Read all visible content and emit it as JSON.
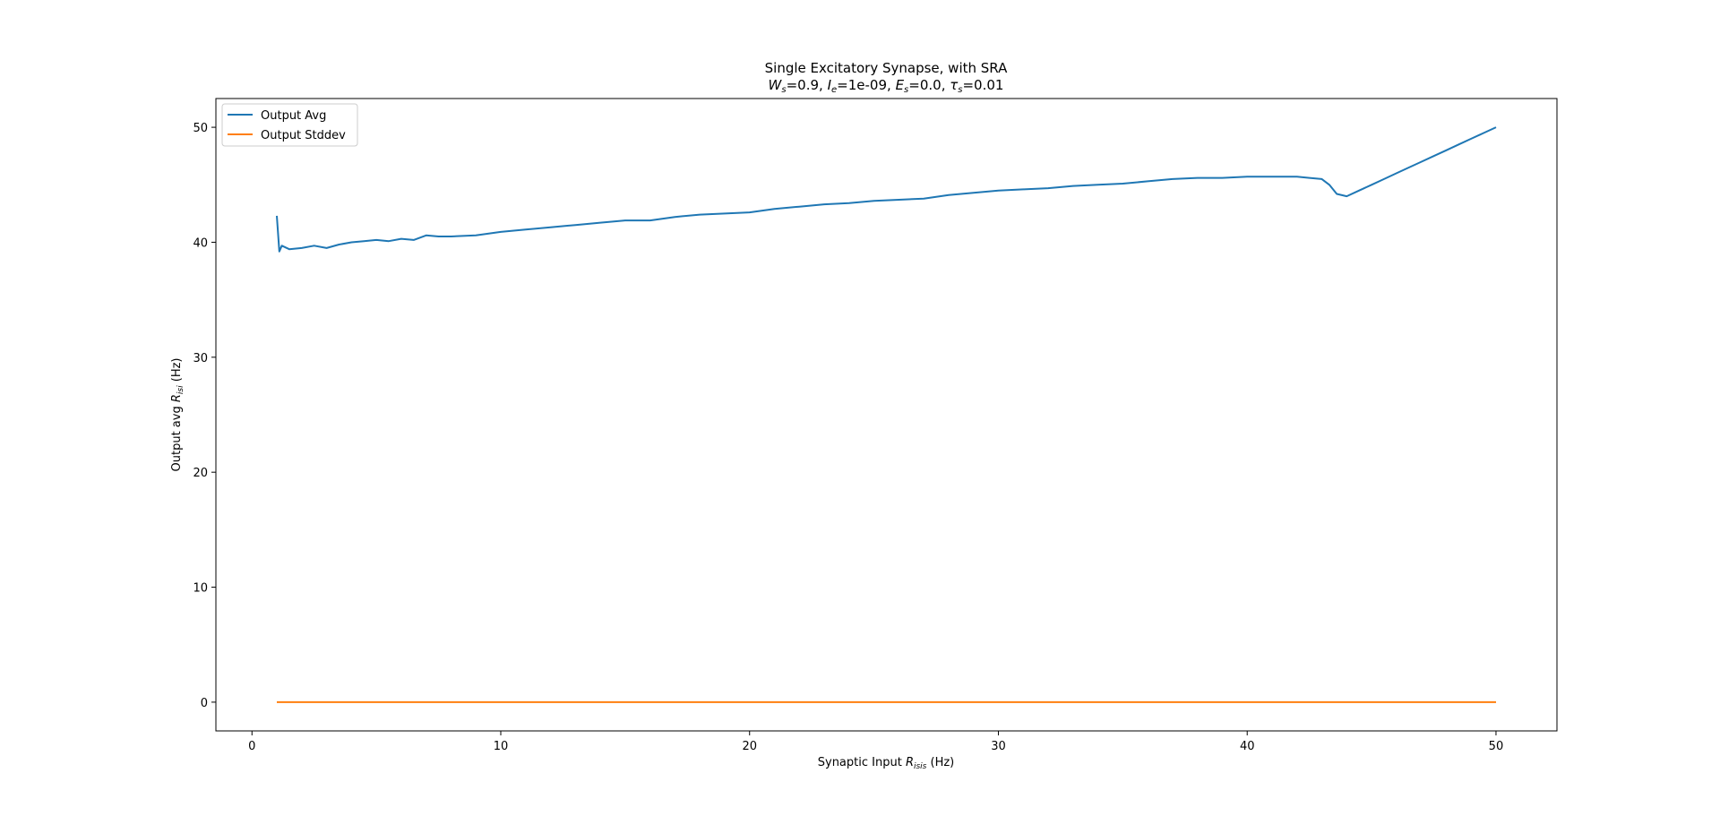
{
  "chart_data": {
    "type": "line",
    "title": "Single Excitatory Synapse, with SRA",
    "subtitle": {
      "W": "W",
      "W_sub": "s",
      "W_val": "=0.9, ",
      "I": "I",
      "I_sub": "e",
      "I_val": "=1e-09, ",
      "E": "E",
      "E_sub": "s",
      "E_val": "=0.0, ",
      "tau": "τ",
      "tau_sub": "s",
      "tau_val": "=0.01"
    },
    "xlabel": {
      "prefix": "Synaptic Input ",
      "var": "R",
      "sub": "isis",
      "suffix": " (Hz)"
    },
    "ylabel": {
      "prefix": "Output avg ",
      "var": "R",
      "sub": "isi",
      "suffix": " (Hz)"
    },
    "xlim": [
      -1.45,
      52.45
    ],
    "ylim": [
      -2.5,
      52.5
    ],
    "xticks": [
      0,
      10,
      20,
      30,
      40,
      50
    ],
    "yticks": [
      0,
      10,
      20,
      30,
      40,
      50
    ],
    "grid": false,
    "legend_position": "top-left",
    "series": [
      {
        "name": "Output Avg",
        "color": "#1f77b4",
        "x": [
          1,
          1.1,
          1.2,
          1.5,
          2,
          2.5,
          3,
          3.5,
          4,
          4.5,
          5,
          5.5,
          6,
          6.5,
          7,
          7.5,
          8,
          9,
          10,
          11,
          12,
          13,
          14,
          15,
          16,
          17,
          18,
          19,
          20,
          21,
          22,
          23,
          24,
          25,
          26,
          27,
          28,
          29,
          30,
          31,
          32,
          33,
          34,
          35,
          36,
          37,
          38,
          39,
          40,
          41,
          42,
          42.5,
          43,
          43.3,
          43.6,
          44,
          44.5,
          45,
          45.5,
          46,
          46.5,
          47,
          47.5,
          48,
          48.5,
          49,
          49.5,
          50
        ],
        "y": [
          42.3,
          39.2,
          39.7,
          39.4,
          39.5,
          39.7,
          39.5,
          39.8,
          40.0,
          40.1,
          40.2,
          40.1,
          40.3,
          40.2,
          40.6,
          40.5,
          40.5,
          40.6,
          40.9,
          41.1,
          41.3,
          41.5,
          41.7,
          41.9,
          41.9,
          42.2,
          42.4,
          42.5,
          42.6,
          42.9,
          43.1,
          43.3,
          43.4,
          43.6,
          43.7,
          43.8,
          44.1,
          44.3,
          44.5,
          44.6,
          44.7,
          44.9,
          45.0,
          45.1,
          45.3,
          45.5,
          45.6,
          45.6,
          45.7,
          45.7,
          45.7,
          45.6,
          45.5,
          45.0,
          44.2,
          44.0,
          44.5,
          45.0,
          45.5,
          46.0,
          46.5,
          47.0,
          47.5,
          48.0,
          48.5,
          49.0,
          49.5,
          50.0
        ]
      },
      {
        "name": "Output Stddev",
        "color": "#ff7f0e",
        "x": [
          1,
          50
        ],
        "y": [
          0,
          0
        ]
      }
    ]
  }
}
